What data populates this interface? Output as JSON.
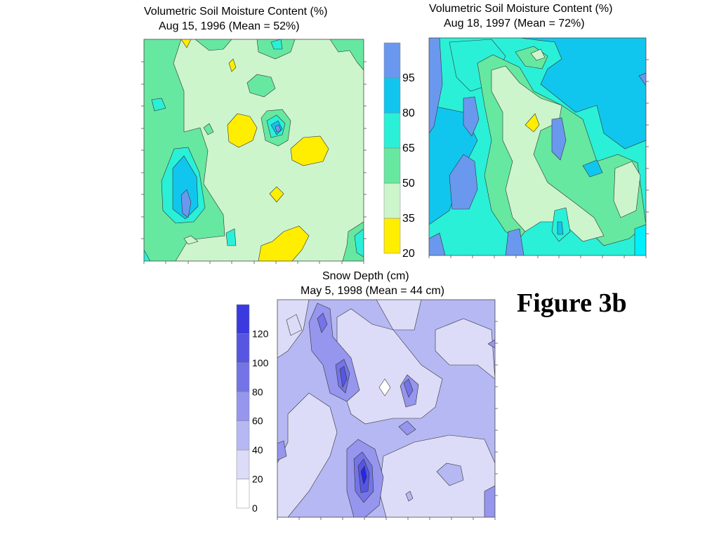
{
  "figure_label": "Figure 3b",
  "colors": {
    "yellow": "#ffee00",
    "pale_green": "#ccf5cc",
    "green": "#66e8a0",
    "aqua": "#2af0d8",
    "sky": "#11c6ee",
    "blue": "#6a98ee",
    "cyan_edge": "#00f0ff",
    "snow_white": "#ffffff",
    "snow_1": "#dcdcf8",
    "snow_2": "#b6b8f4",
    "snow_3": "#9696ee",
    "snow_4": "#7474e6",
    "snow_5": "#5656e2",
    "snow_6": "#3a3ae0",
    "snow_7": "#2626e8"
  },
  "chart_data": [
    {
      "type": "heatmap",
      "title": "Volumetric Soil Moisture Content (%)",
      "subtitle": "Aug 15, 1996 (Mean = 52%)",
      "mean": 52,
      "colorbar_ticks": [
        "20",
        "35",
        "50",
        "65",
        "80",
        "95"
      ],
      "colorbar_levels": [
        20,
        35,
        50,
        65,
        80,
        95,
        110
      ]
    },
    {
      "type": "heatmap",
      "title": "Volumetric Soil Moisture Content (%)",
      "subtitle": "Aug 18, 1997 (Mean = 72%)",
      "mean": 72,
      "colorbar_ticks": [
        "20",
        "35",
        "50",
        "65",
        "80",
        "95"
      ],
      "colorbar_levels": [
        20,
        35,
        50,
        65,
        80,
        95,
        110
      ]
    },
    {
      "type": "heatmap",
      "title": "Snow Depth (cm)",
      "subtitle": "May 5, 1998 (Mean = 44 cm)",
      "mean": 44,
      "colorbar_ticks": [
        "0",
        "20",
        "40",
        "60",
        "80",
        "100",
        "120"
      ],
      "colorbar_levels": [
        0,
        20,
        40,
        60,
        80,
        100,
        120,
        140
      ]
    }
  ]
}
